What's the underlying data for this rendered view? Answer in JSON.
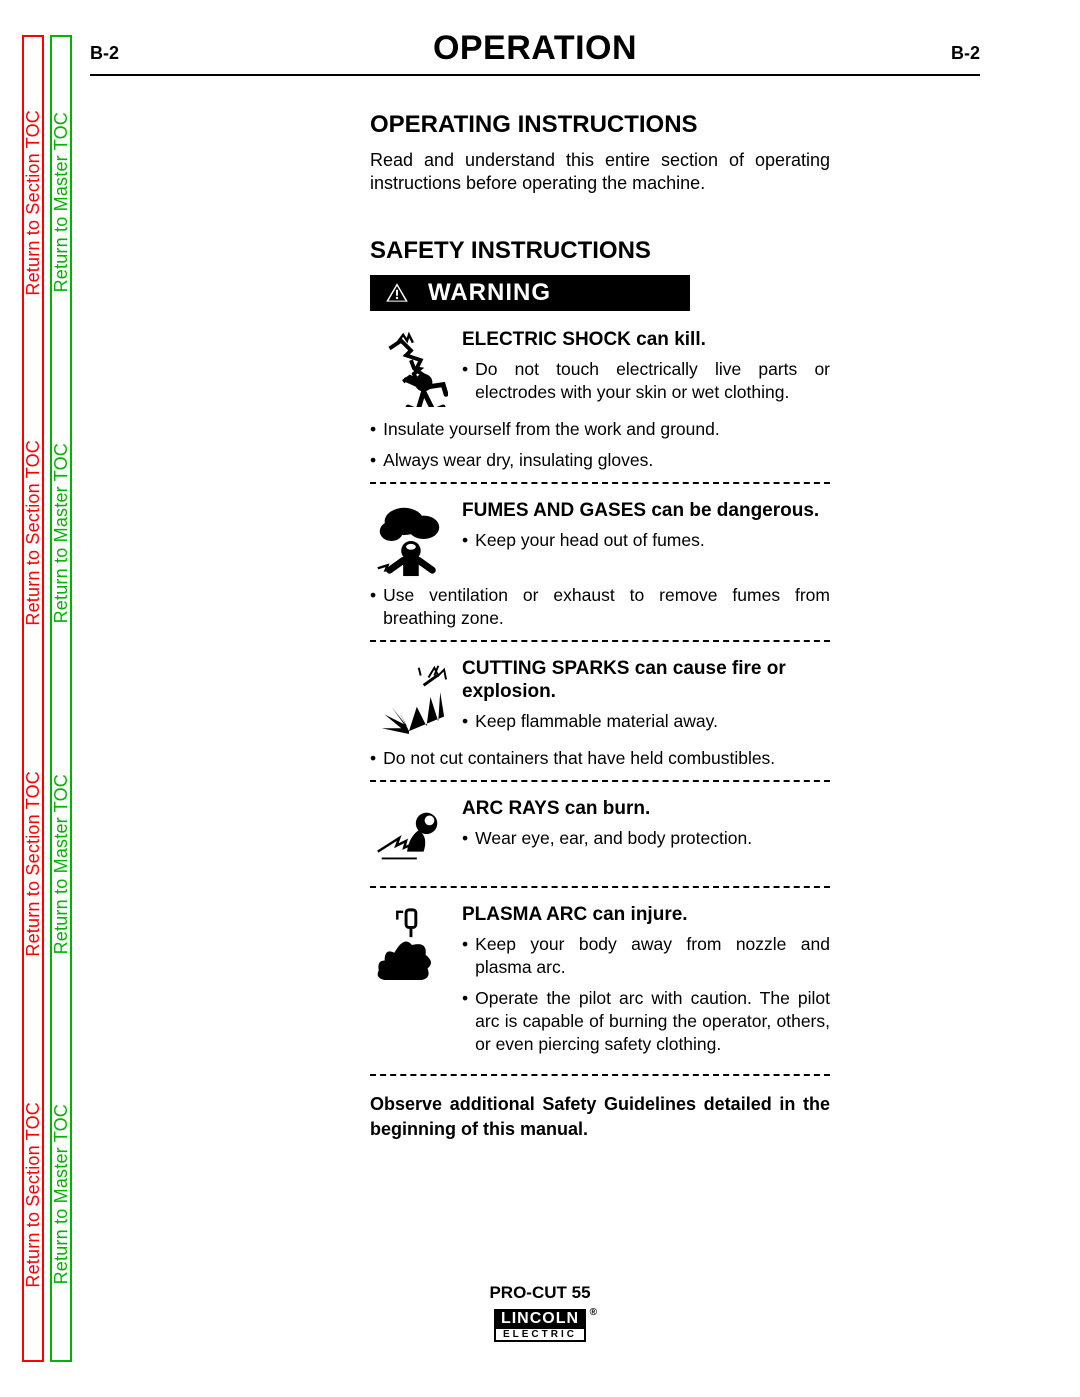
{
  "header": {
    "page_left": "B-2",
    "title": "OPERATION",
    "page_right": "B-2"
  },
  "rails": {
    "section_label": "Return to Section TOC",
    "master_label": "Return to Master TOC"
  },
  "sections": {
    "op_title": "OPERATING INSTRUCTIONS",
    "op_para": "Read and understand this entire section of operating instructions before operating the machine.",
    "safety_title": "SAFETY INSTRUCTIONS",
    "warning_label": "WARNING",
    "footnote": "Observe additional Safety Guidelines detailed in the beginning of this manual."
  },
  "hazards": [
    {
      "icon": "shock",
      "heading": "ELECTRIC SHOCK can kill.",
      "inner_bullets": [
        "Do not touch electrically live parts or electrodes with your skin or wet clothing."
      ],
      "outer_bullets": [
        "Insulate yourself from the work and ground.",
        "Always wear dry, insulating gloves."
      ]
    },
    {
      "icon": "fumes",
      "heading": "FUMES AND GASES can be dangerous.",
      "inner_bullets": [
        "Keep your head out of fumes."
      ],
      "outer_bullets": [
        "Use ventilation or exhaust to remove fumes from breathing zone."
      ]
    },
    {
      "icon": "sparks",
      "heading": "CUTTING SPARKS can cause fire or explosion.",
      "inner_bullets": [
        "Keep flammable material away."
      ],
      "outer_bullets": [
        "Do not cut containers that have held combustibles."
      ]
    },
    {
      "icon": "arcrays",
      "heading": "ARC RAYS can burn.",
      "inner_bullets": [
        "Wear eye, ear, and body protection."
      ],
      "outer_bullets": []
    },
    {
      "icon": "plasma",
      "heading": "PLASMA ARC can injure.",
      "inner_bullets": [
        "Keep your body away from nozzle and plasma arc.",
        "Operate the pilot arc with caution.  The pilot arc is capable of burning the operator, others, or even piercing safety clothing."
      ],
      "outer_bullets": []
    }
  ],
  "footer": {
    "model": "PRO-CUT 55",
    "brand_top": "LINCOLN",
    "brand_bot": "ELECTRIC",
    "reg": "®"
  },
  "colors": {
    "red": "#ff0000",
    "green": "#00b400",
    "black": "#000000"
  }
}
